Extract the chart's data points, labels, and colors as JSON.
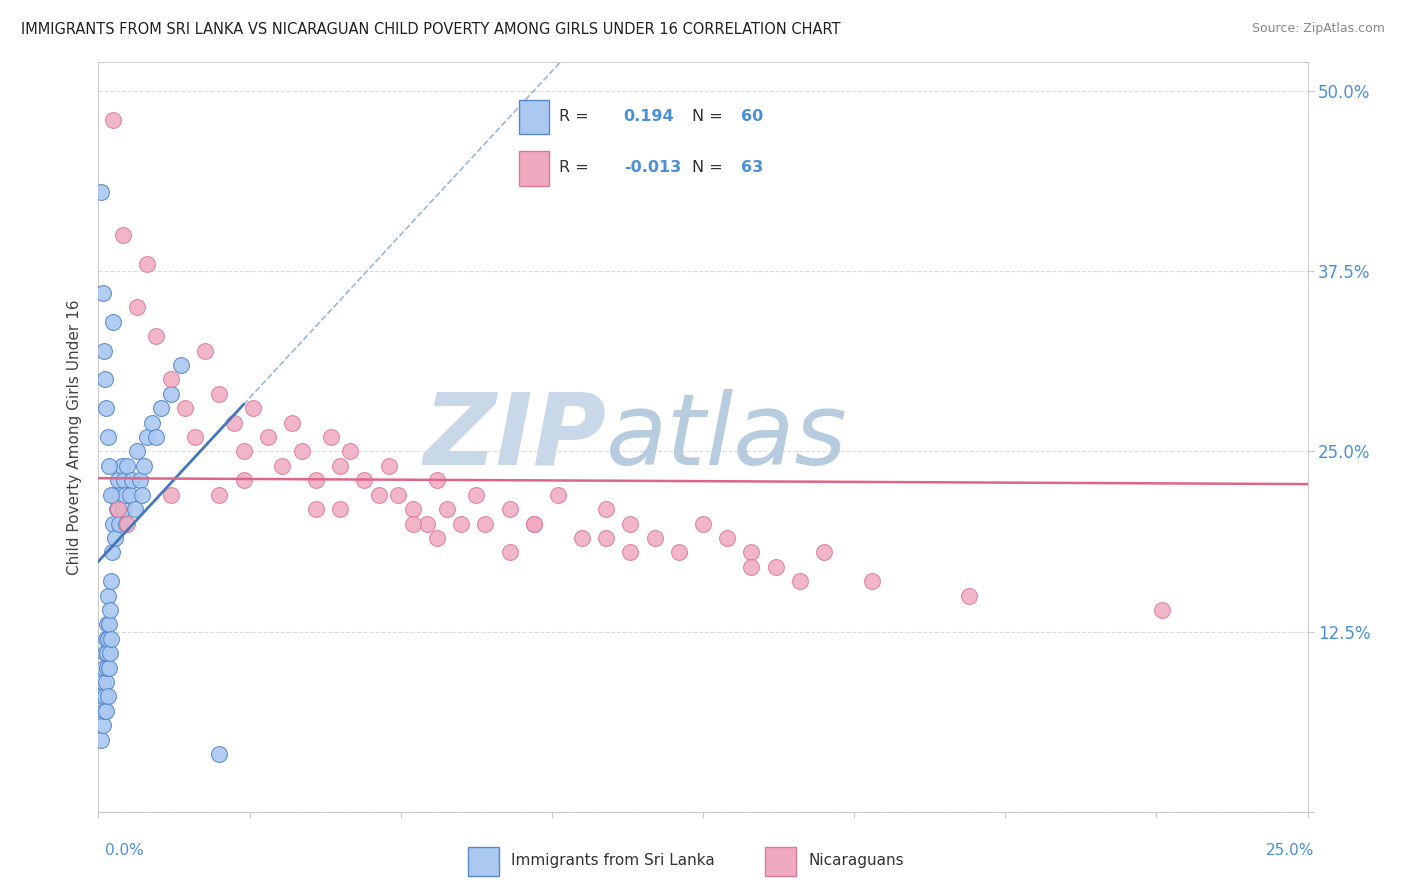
{
  "title": "IMMIGRANTS FROM SRI LANKA VS NICARAGUAN CHILD POVERTY AMONG GIRLS UNDER 16 CORRELATION CHART",
  "source": "Source: ZipAtlas.com",
  "ylabel": "Child Poverty Among Girls Under 16",
  "xlim": [
    0,
    25.0
  ],
  "ylim": [
    0,
    52
  ],
  "blue_R": 0.194,
  "blue_N": 60,
  "pink_R": -0.013,
  "pink_N": 63,
  "blue_color": "#aac8f0",
  "pink_color": "#f0aac0",
  "blue_edge_color": "#5588cc",
  "pink_edge_color": "#dd7799",
  "blue_line_color": "#4477bb",
  "pink_line_color": "#dd6688",
  "dash_line_color": "#9ab8d8",
  "watermark_zip_color": "#c8d8e8",
  "watermark_atlas_color": "#b8cce0",
  "ytick_color": "#4a90d9",
  "xtick_color": "#4a90d9",
  "grid_color": "#dddddd",
  "blue_scatter_x": [
    0.05,
    0.08,
    0.1,
    0.1,
    0.12,
    0.12,
    0.13,
    0.14,
    0.15,
    0.15,
    0.16,
    0.17,
    0.18,
    0.18,
    0.19,
    0.2,
    0.2,
    0.21,
    0.22,
    0.23,
    0.24,
    0.25,
    0.27,
    0.28,
    0.3,
    0.32,
    0.35,
    0.38,
    0.4,
    0.42,
    0.45,
    0.48,
    0.5,
    0.52,
    0.55,
    0.58,
    0.6,
    0.65,
    0.7,
    0.75,
    0.8,
    0.85,
    0.9,
    0.95,
    1.0,
    1.1,
    1.2,
    1.3,
    1.5,
    1.7,
    0.06,
    0.09,
    0.11,
    0.14,
    0.16,
    0.19,
    0.22,
    0.26,
    0.3,
    2.5
  ],
  "blue_scatter_y": [
    5,
    8,
    6,
    9,
    7,
    10,
    8,
    11,
    7,
    12,
    9,
    11,
    10,
    13,
    8,
    12,
    15,
    10,
    13,
    11,
    14,
    12,
    16,
    18,
    20,
    22,
    19,
    21,
    23,
    20,
    22,
    24,
    21,
    23,
    22,
    20,
    24,
    22,
    23,
    21,
    25,
    23,
    22,
    24,
    26,
    27,
    26,
    28,
    29,
    31,
    43,
    36,
    32,
    30,
    28,
    26,
    24,
    22,
    34,
    4
  ],
  "pink_scatter_x": [
    0.3,
    0.5,
    0.8,
    1.0,
    1.2,
    1.5,
    1.8,
    2.0,
    2.2,
    2.5,
    2.8,
    3.0,
    3.2,
    3.5,
    3.8,
    4.0,
    4.2,
    4.5,
    4.8,
    5.0,
    5.2,
    5.5,
    5.8,
    6.0,
    6.2,
    6.5,
    6.8,
    7.0,
    7.2,
    7.5,
    7.8,
    8.0,
    8.5,
    9.0,
    9.5,
    10.0,
    10.5,
    11.0,
    11.5,
    12.0,
    12.5,
    13.0,
    13.5,
    14.0,
    14.5,
    15.0,
    0.4,
    1.5,
    3.0,
    5.0,
    7.0,
    9.0,
    11.0,
    13.5,
    16.0,
    18.0,
    0.6,
    2.5,
    4.5,
    6.5,
    8.5,
    10.5,
    22.0
  ],
  "pink_scatter_y": [
    48,
    40,
    35,
    38,
    33,
    30,
    28,
    26,
    32,
    29,
    27,
    25,
    28,
    26,
    24,
    27,
    25,
    23,
    26,
    24,
    25,
    23,
    22,
    24,
    22,
    21,
    20,
    23,
    21,
    20,
    22,
    20,
    21,
    20,
    22,
    19,
    21,
    20,
    19,
    18,
    20,
    19,
    18,
    17,
    16,
    18,
    21,
    22,
    23,
    21,
    19,
    20,
    18,
    17,
    16,
    15,
    20,
    22,
    21,
    20,
    18,
    19,
    14
  ]
}
